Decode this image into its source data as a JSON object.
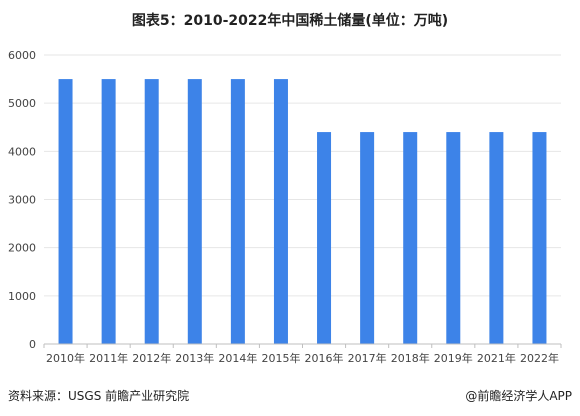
{
  "chart_data": {
    "type": "bar",
    "title": "图表5：2010-2022年中国稀土储量(单位：万吨)",
    "categories": [
      "2010年",
      "2011年",
      "2012年",
      "2013年",
      "2014年",
      "2015年",
      "2016年",
      "2017年",
      "2018年",
      "2019年",
      "2021年",
      "2022年"
    ],
    "values": [
      5500,
      5500,
      5500,
      5500,
      5500,
      5500,
      4400,
      4400,
      4400,
      4400,
      4400,
      4400
    ],
    "ylim": [
      0,
      6000
    ],
    "yticks": [
      0,
      1000,
      2000,
      3000,
      4000,
      5000,
      6000
    ],
    "grid": true,
    "legend": "none",
    "colors": {
      "bar": "#3D83E8",
      "grid": "#E6E6E6",
      "axis": "#BFBFBF"
    }
  },
  "footer": {
    "source": "资料来源：USGS 前瞻产业研究院",
    "brand": "@前瞻经济学人APP"
  }
}
